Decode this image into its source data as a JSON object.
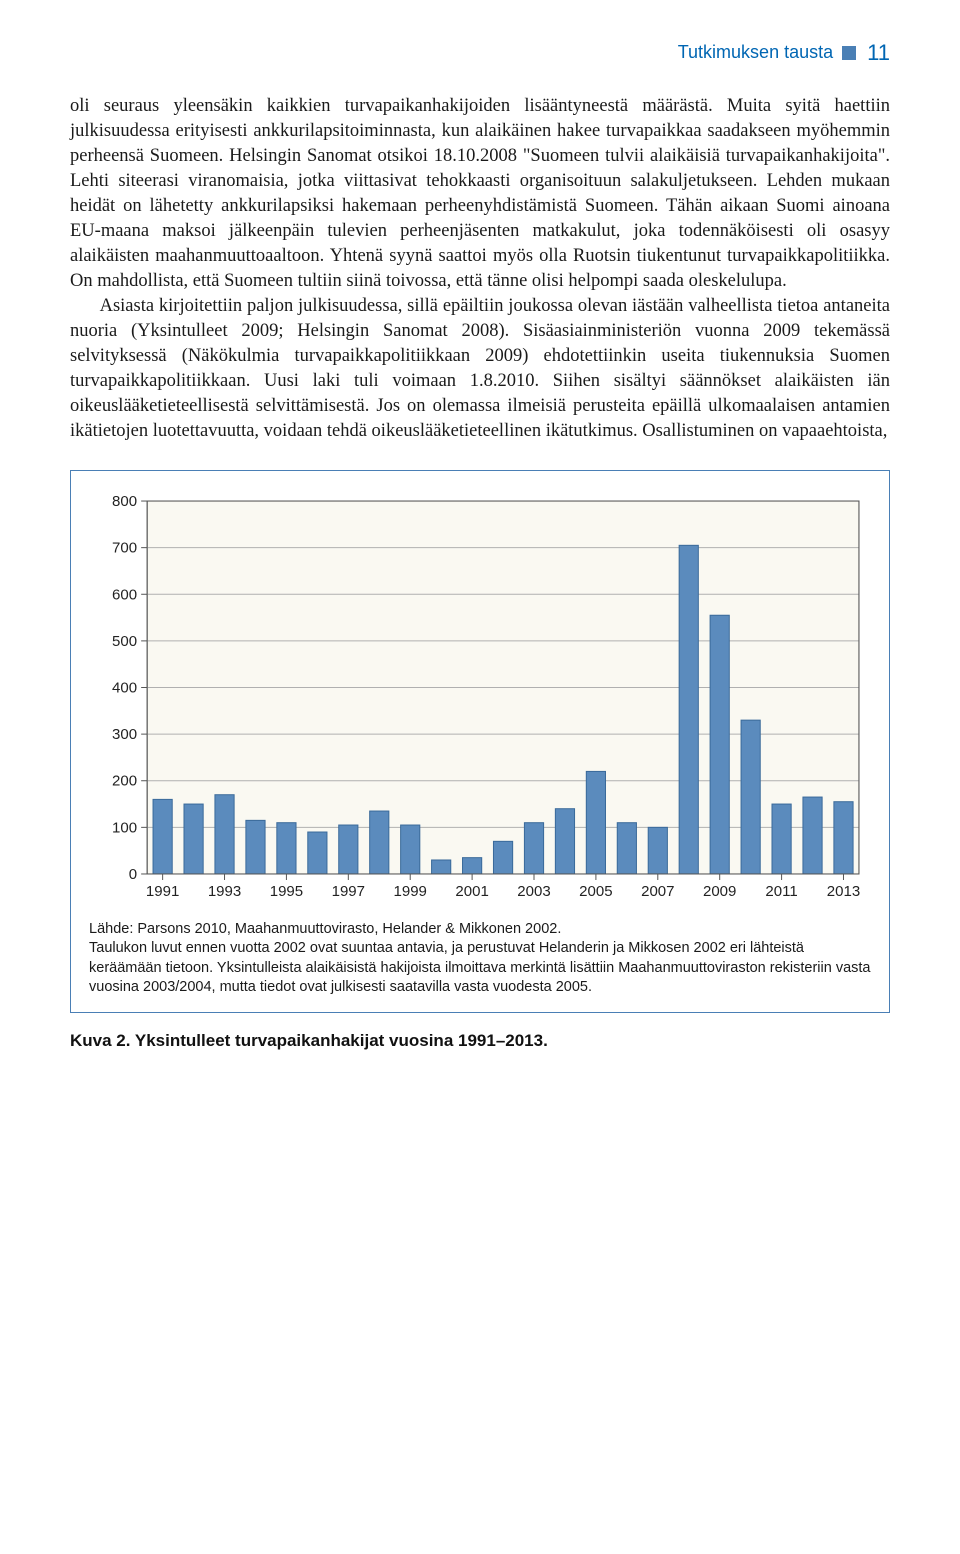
{
  "header": {
    "section": "Tutkimuksen tausta",
    "page_number": "11"
  },
  "body": {
    "p1": "oli seuraus yleensäkin kaikkien turvapaikanhakijoiden lisääntyneestä määrästä. Muita syitä haettiin julkisuudessa erityisesti ankkurilapsitoiminnasta, kun alaikäinen hakee turvapaikkaa saadakseen myöhemmin perheensä Suomeen. Helsingin Sanomat otsikoi 18.10.2008 \"Suomeen tulvii alaikäisiä turvapaikanhakijoita\". Lehti siteerasi viranomaisia, jotka viittasivat tehokkaasti organisoituun salakuljetukseen. Lehden mukaan heidät on lähetetty ankkurilapsiksi hakemaan perheenyhdistämistä Suomeen. Tähän aikaan Suomi ainoana EU-maana maksoi jälkeenpäin tulevien perheenjäsenten matkakulut, joka todennäköisesti oli osasyy alaikäisten maahanmuuttoaaltoon. Yhtenä syynä saattoi myös olla Ruotsin tiukentunut turvapaikkapolitiikka. On mahdollista, että Suomeen tultiin siinä toivossa, että tänne olisi helpompi saada oleskelulupa.",
    "p2": "Asiasta kirjoitettiin paljon julkisuudessa, sillä epäiltiin joukossa olevan iästään valheellista tietoa antaneita nuoria (Yksintulleet 2009; Helsingin Sanomat 2008). Sisäasiainministeriön vuonna 2009 tekemässä selvityksessä (Näkökulmia turvapaikkapolitiikkaan 2009) ehdotettiinkin useita tiukennuksia Suomen turvapaikkapolitiikkaan. Uusi laki tuli voimaan 1.8.2010. Siihen sisältyi säännökset alaikäisten iän oikeuslääketieteellisestä selvittämisestä. Jos on olemassa ilmeisiä perusteita epäillä ulkomaalaisen antamien ikätietojen luotettavuutta, voidaan tehdä oikeuslääketieteellinen ikätutkimus. Osallistuminen on vapaaehtoista,"
  },
  "chart": {
    "type": "bar",
    "years": [
      "1991",
      "1992",
      "1993",
      "1994",
      "1995",
      "1996",
      "1997",
      "1998",
      "1999",
      "2000",
      "2001",
      "2002",
      "2003",
      "2004",
      "2005",
      "2006",
      "2007",
      "2008",
      "2009",
      "2010",
      "2011",
      "2012",
      "2013"
    ],
    "values": [
      160,
      150,
      170,
      115,
      110,
      90,
      105,
      135,
      105,
      30,
      35,
      70,
      110,
      140,
      220,
      110,
      100,
      705,
      555,
      330,
      150,
      165,
      155
    ],
    "x_tick_labels": [
      "1991",
      "1993",
      "1995",
      "1997",
      "1999",
      "2001",
      "2003",
      "2005",
      "2007",
      "2009",
      "2011",
      "2013"
    ],
    "x_tick_indices": [
      0,
      2,
      4,
      6,
      8,
      10,
      12,
      14,
      16,
      18,
      20,
      22
    ],
    "ylim": [
      0,
      800
    ],
    "ytick_step": 100,
    "bar_color": "#5b8bbd",
    "bar_border": "#3a6a9a",
    "plot_bg": "#faf9f2",
    "grid_color": "#b0b0b0",
    "axis_color": "#555555",
    "tick_fontsize": 15,
    "tick_color": "#222222",
    "bar_width_ratio": 0.62
  },
  "footnote": {
    "line1": "Lähde: Parsons 2010, Maahanmuuttovirasto, Helander & Mikkonen 2002.",
    "line2": "Taulukon luvut ennen vuotta 2002 ovat suuntaa antavia, ja perustuvat Helanderin ja Mikkosen 2002 eri lähteistä keräämään tietoon. Yksintulleista alaikäisistä hakijoista ilmoittava merkintä lisättiin Maahanmuuttoviraston rekisteriin vasta vuosina 2003/2004, mutta tiedot ovat julkisesti saatavilla vasta vuodesta 2005."
  },
  "caption": "Kuva 2. Yksintulleet turvapaikanhakijat vuosina 1991–2013."
}
